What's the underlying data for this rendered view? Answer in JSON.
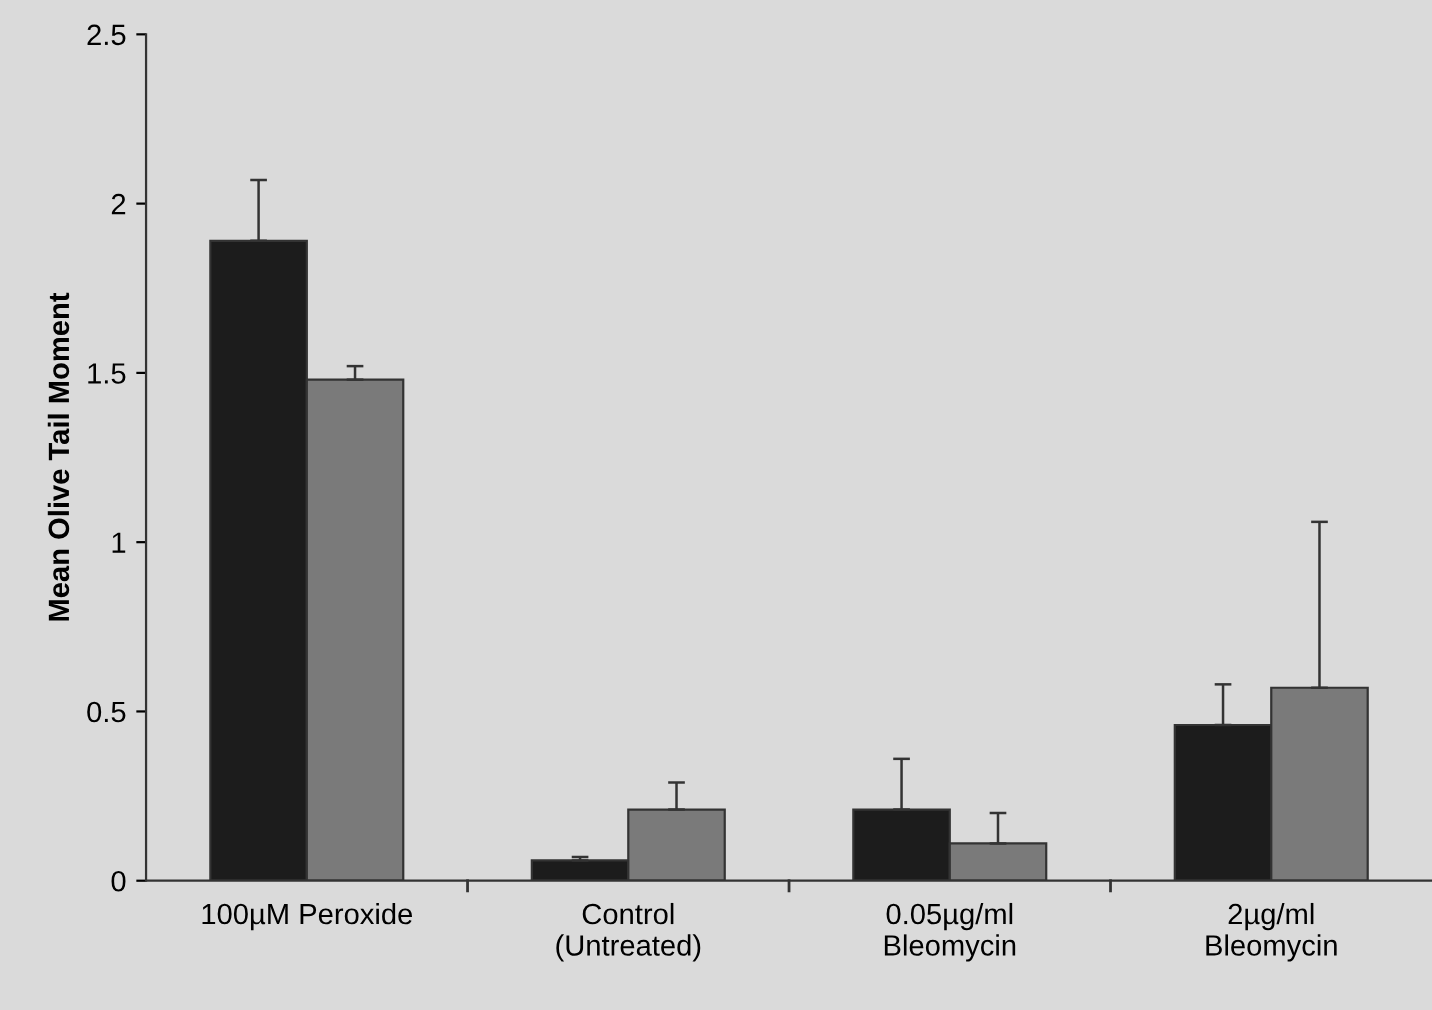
{
  "chart_data": {
    "type": "bar",
    "ylabel": "Mean Olive Tail Moment",
    "categories": [
      "100µM Peroxide",
      "Control\n(Untreated)",
      "0.05µg/ml\nBleomycin",
      "2µg/ml\nBleomycin"
    ],
    "series": [
      {
        "color": "#1c1c1c",
        "values": [
          1.89,
          0.06,
          0.21,
          0.46
        ],
        "errors": [
          [
            1.89,
            2.07
          ],
          [
            0.06,
            0.07
          ],
          [
            0.21,
            0.36
          ],
          [
            0.46,
            0.58
          ]
        ]
      },
      {
        "color": "#7a7a7a",
        "values": [
          1.48,
          0.21,
          0.11,
          0.57
        ],
        "errors": [
          [
            1.48,
            1.52
          ],
          [
            0.21,
            0.29
          ],
          [
            0.11,
            0.2
          ],
          [
            0.57,
            1.06
          ]
        ]
      }
    ],
    "ylim": [
      0,
      2.5
    ],
    "yticks": [
      0,
      0.5,
      1,
      1.5,
      2,
      2.5
    ],
    "grid": false,
    "legend": false
  }
}
